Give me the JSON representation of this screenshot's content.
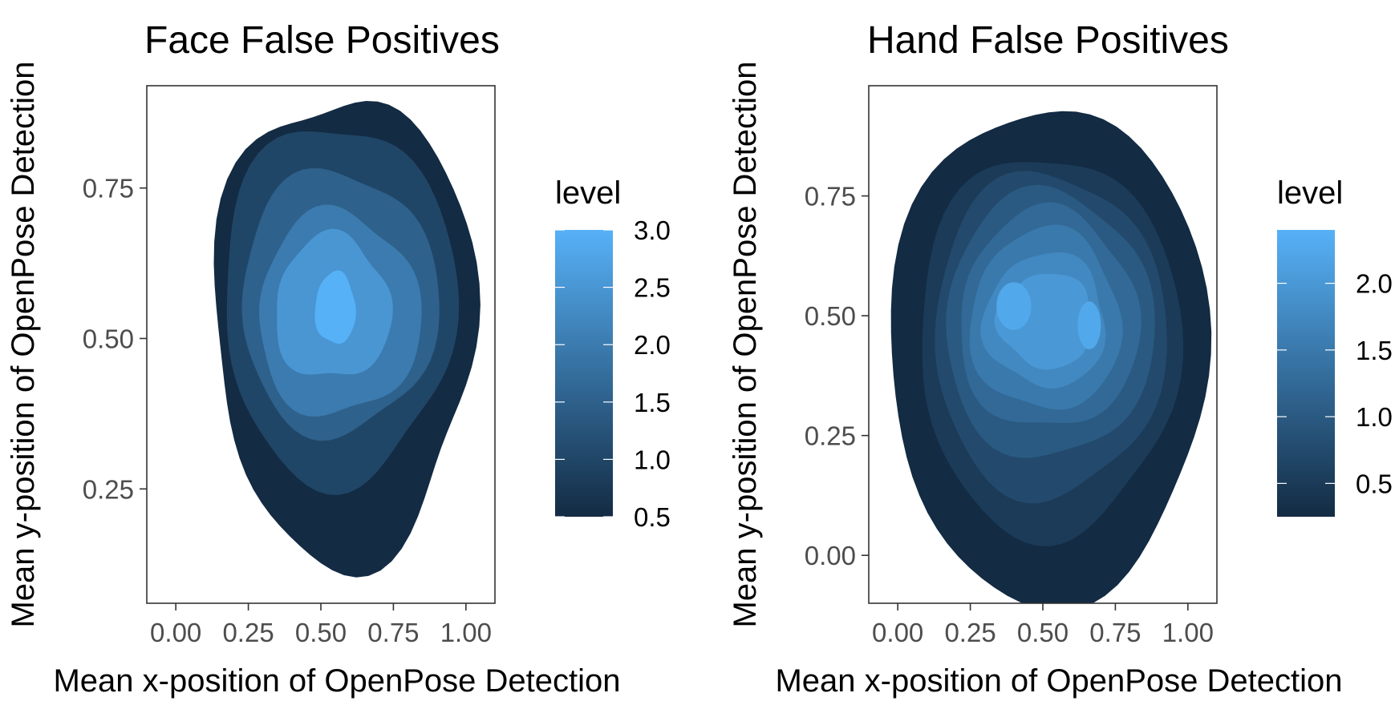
{
  "colors": {
    "low": "#132B43",
    "high": "#56B1F7",
    "panel_border": "#333333",
    "tick_text": "#4d4d4d"
  },
  "chart_data": [
    {
      "type": "contour",
      "title": "Face False Positives",
      "xlabel": "Mean x-position of OpenPose Detection",
      "ylabel": "Mean y-position of OpenPose Detection",
      "xlim": [
        -0.1,
        1.1
      ],
      "ylim": [
        0.92,
        0.06
      ],
      "y_reversed": true,
      "x_ticks": [
        0.0,
        0.25,
        0.5,
        0.75,
        1.0
      ],
      "x_tick_labels": [
        "0.00",
        "0.25",
        "0.50",
        "0.75",
        "1.00"
      ],
      "y_ticks": [
        0.25,
        0.5,
        0.75
      ],
      "y_tick_labels": [
        "0.25",
        "0.50",
        "0.75"
      ],
      "grid": false,
      "legend": {
        "title": "level",
        "position": "right",
        "range": [
          0.5,
          3.0
        ],
        "ticks": [
          3.0,
          2.5,
          2.0,
          1.5,
          1.0,
          0.5
        ],
        "tick_labels": [
          "3.0",
          "2.5",
          "2.0",
          "1.5",
          "1.0",
          "0.5"
        ]
      },
      "levels": [
        {
          "level": 0.5,
          "cx": 0.58,
          "cy": 0.52,
          "rx": 0.45,
          "ry": 0.39,
          "wobble": 0.06
        },
        {
          "level": 1.0,
          "cx": 0.56,
          "cy": 0.56,
          "rx": 0.4,
          "ry": 0.3,
          "wobble": 0.05
        },
        {
          "level": 1.5,
          "cx": 0.56,
          "cy": 0.56,
          "rx": 0.34,
          "ry": 0.22,
          "wobble": 0.05
        },
        {
          "level": 2.0,
          "cx": 0.56,
          "cy": 0.54,
          "rx": 0.28,
          "ry": 0.17,
          "wobble": 0.06
        },
        {
          "level": 2.5,
          "cx": 0.54,
          "cy": 0.55,
          "rx": 0.2,
          "ry": 0.12,
          "wobble": 0.07
        },
        {
          "level": 3.0,
          "cx": 0.55,
          "cy": 0.55,
          "rx": 0.07,
          "ry": 0.06,
          "wobble": 0.05
        }
      ]
    },
    {
      "type": "contour",
      "title": "Hand False Positives",
      "xlabel": "Mean x-position of OpenPose Detection",
      "ylabel": "Mean y-position of OpenPose Detection",
      "xlim": [
        -0.1,
        1.1
      ],
      "ylim": [
        0.98,
        -0.1
      ],
      "y_reversed": true,
      "x_ticks": [
        0.0,
        0.25,
        0.5,
        0.75,
        1.0
      ],
      "x_tick_labels": [
        "0.00",
        "0.25",
        "0.50",
        "0.75",
        "1.00"
      ],
      "y_ticks": [
        0.0,
        0.25,
        0.5,
        0.75
      ],
      "y_tick_labels": [
        "0.00",
        "0.25",
        "0.50",
        "0.75"
      ],
      "grid": false,
      "legend": {
        "title": "level",
        "position": "right",
        "range": [
          0.25,
          2.4
        ],
        "ticks": [
          2.0,
          1.5,
          1.0,
          0.5
        ],
        "tick_labels": [
          "2.0",
          "1.5",
          "1.0",
          "0.5"
        ]
      },
      "levels": [
        {
          "level": 0.25,
          "cx": 0.52,
          "cy": 0.42,
          "rx": 0.55,
          "ry": 0.52,
          "wobble": 0.03
        },
        {
          "level": 0.5,
          "cx": 0.52,
          "cy": 0.44,
          "rx": 0.45,
          "ry": 0.4,
          "wobble": 0.04
        },
        {
          "level": 0.75,
          "cx": 0.52,
          "cy": 0.46,
          "rx": 0.4,
          "ry": 0.34,
          "wobble": 0.04
        },
        {
          "level": 1.0,
          "cx": 0.52,
          "cy": 0.48,
          "rx": 0.36,
          "ry": 0.28,
          "wobble": 0.04
        },
        {
          "level": 1.25,
          "cx": 0.52,
          "cy": 0.49,
          "rx": 0.31,
          "ry": 0.23,
          "wobble": 0.05
        },
        {
          "level": 1.5,
          "cx": 0.51,
          "cy": 0.49,
          "rx": 0.26,
          "ry": 0.19,
          "wobble": 0.05
        },
        {
          "level": 1.75,
          "cx": 0.51,
          "cy": 0.49,
          "rx": 0.21,
          "ry": 0.14,
          "wobble": 0.06
        },
        {
          "level": 2.0,
          "cx": 0.51,
          "cy": 0.49,
          "rx": 0.16,
          "ry": 0.1,
          "wobble": 0.07
        }
      ],
      "peaks": [
        {
          "level": 2.25,
          "x": 0.4,
          "y": 0.52,
          "rx": 0.06,
          "ry": 0.05
        },
        {
          "level": 2.25,
          "x": 0.66,
          "y": 0.48,
          "rx": 0.04,
          "ry": 0.05
        }
      ]
    }
  ]
}
